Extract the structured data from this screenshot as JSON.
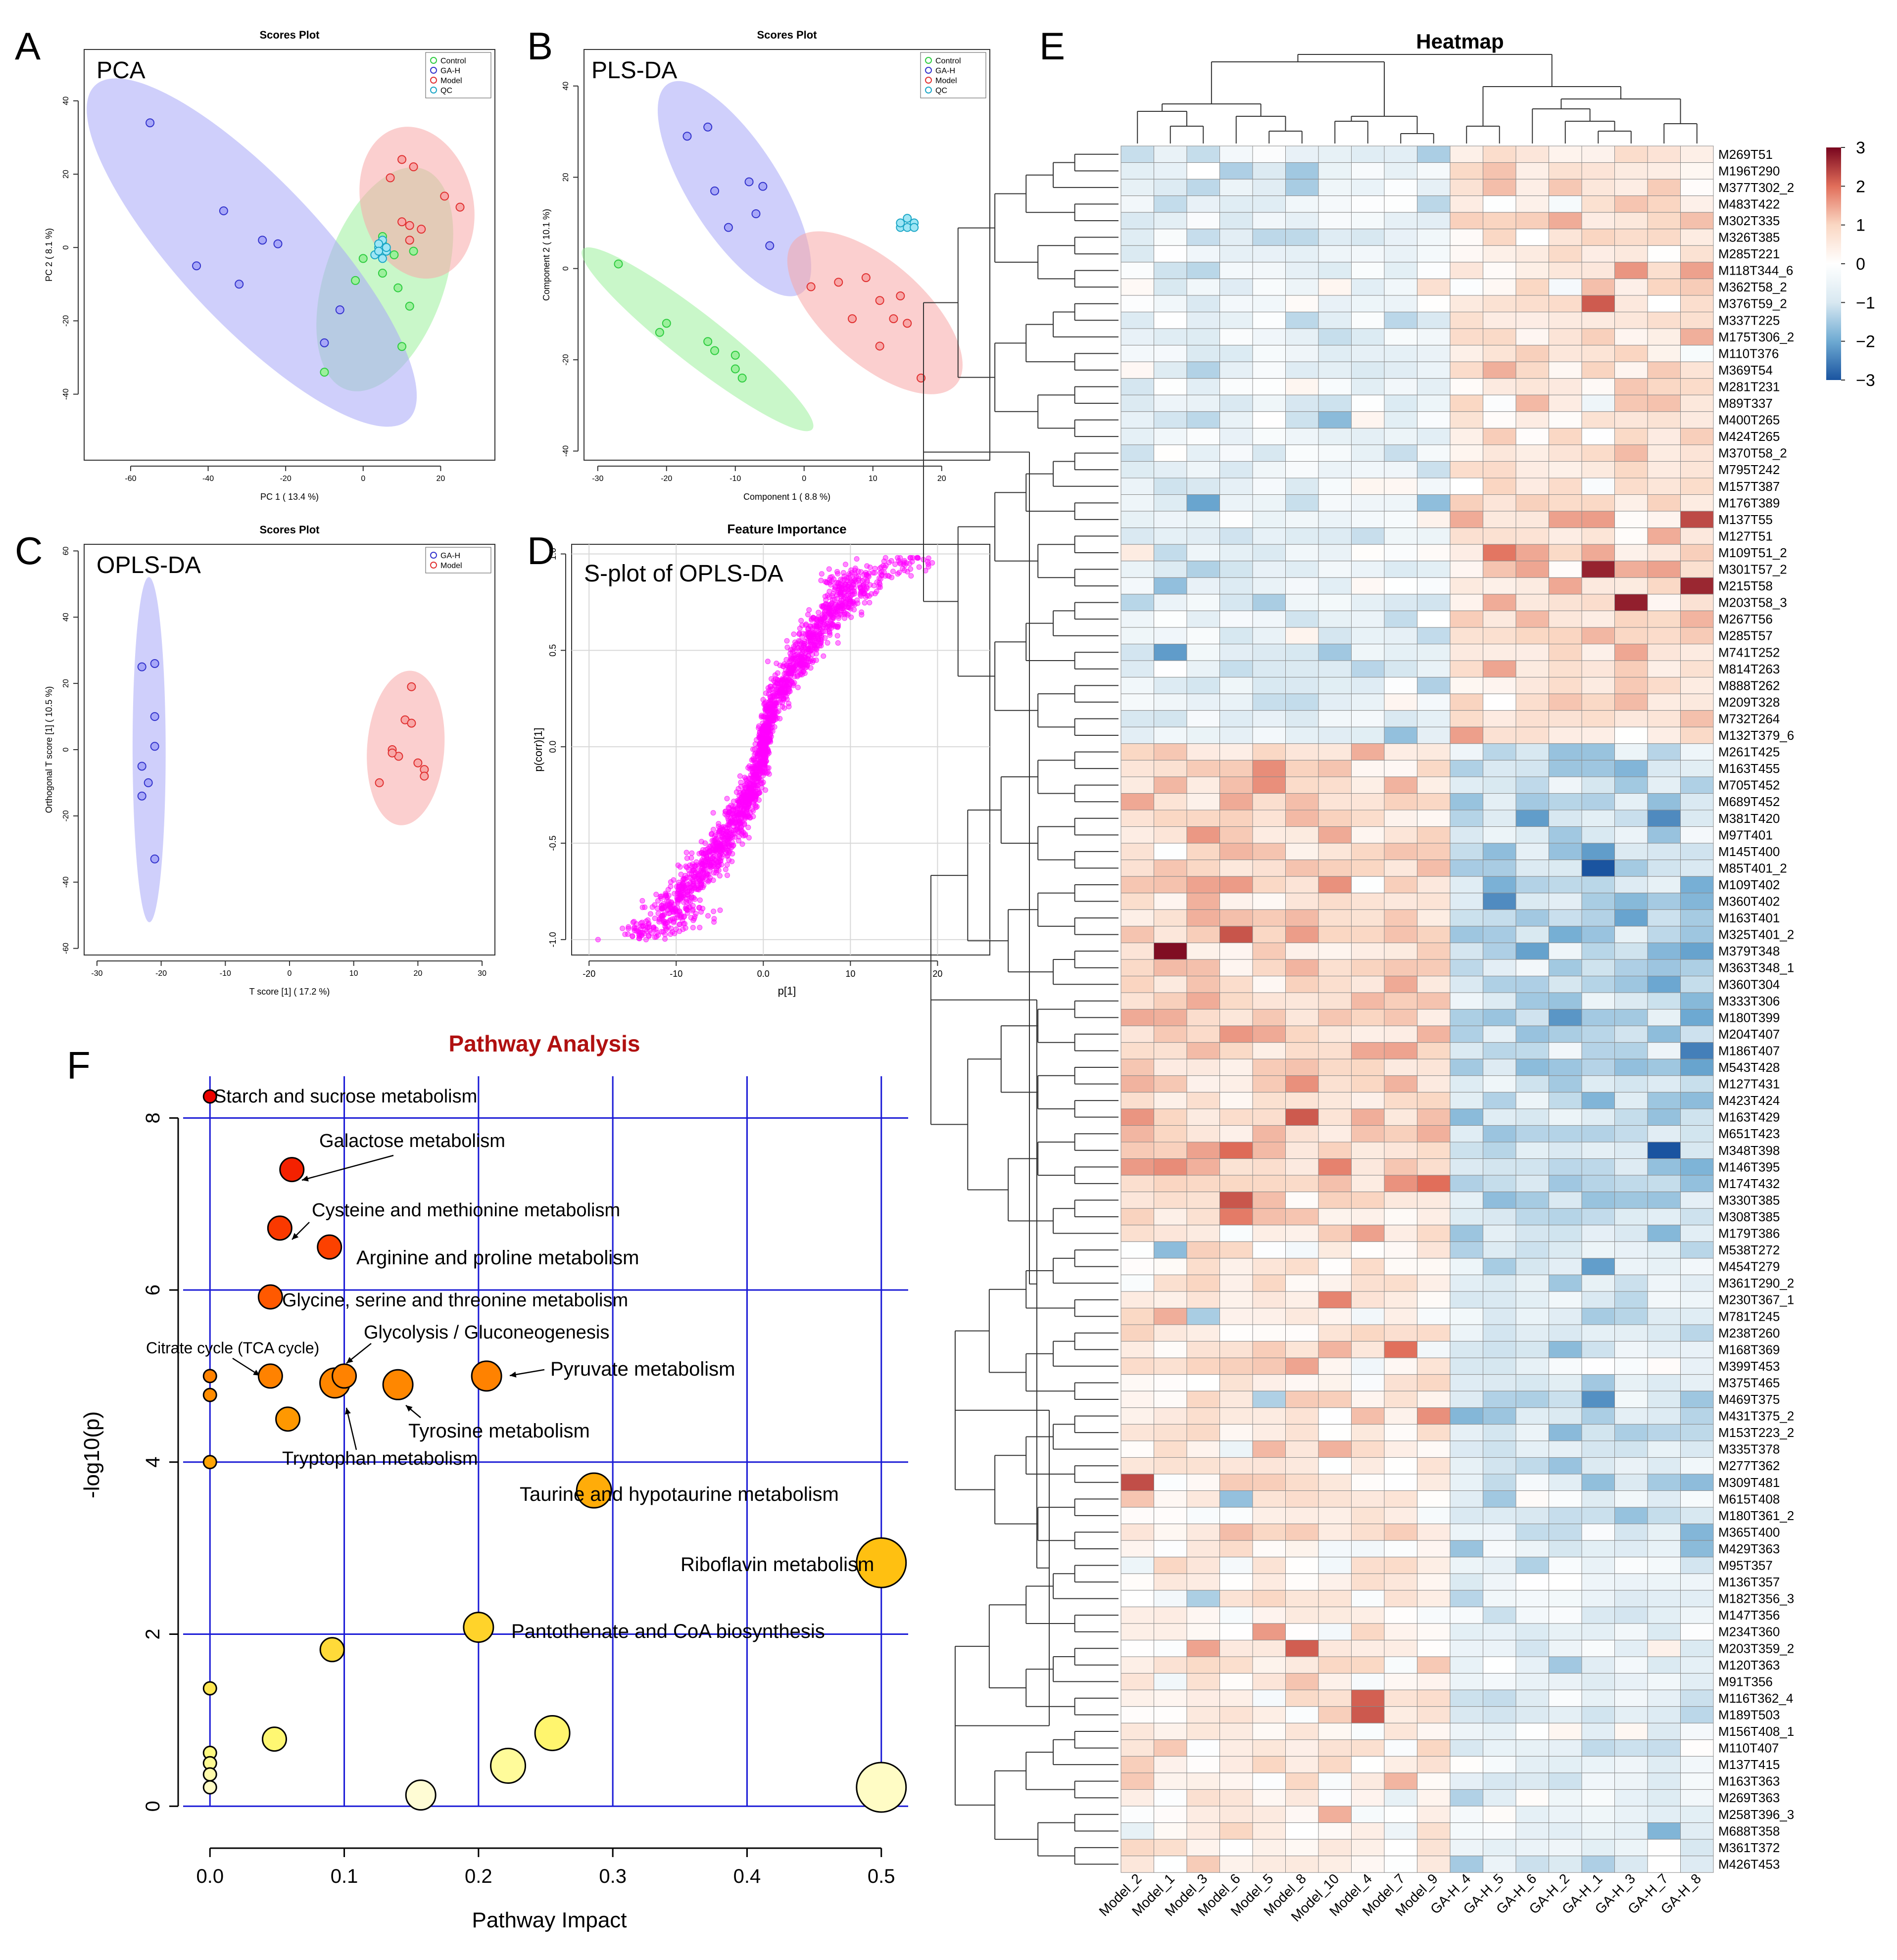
{
  "figure": {
    "panel_letters": [
      "A",
      "B",
      "C",
      "D",
      "E",
      "F"
    ],
    "colors": {
      "control": "#2ecc40",
      "gah": "#3333cc",
      "model": "#e03030",
      "qc": "#1aa6c6",
      "control_fill": "#9cf09c",
      "gah_fill": "#a8a8f8",
      "model_fill": "#f8a8a8",
      "splot": "#ff00ff",
      "grid_blue": "#1a1ad6",
      "pathway_title": "#b01010"
    }
  },
  "chart_data": [
    {
      "panel": "A",
      "type": "scatter",
      "title": "Scores Plot",
      "label": "PCA",
      "xlabel": "PC 1 ( 13.4 %)",
      "ylabel": "PC 2 ( 8.1 %)",
      "xlim": [
        -72,
        34
      ],
      "ylim": [
        -58,
        54
      ],
      "xticks": [
        -60,
        -40,
        -20,
        0,
        20
      ],
      "yticks": [
        -40,
        -20,
        0,
        20,
        40
      ],
      "legend": [
        "Control",
        "GA-H",
        "Model",
        "QC"
      ],
      "series": [
        {
          "name": "Control",
          "points": [
            [
              5,
              -7
            ],
            [
              8,
              -2
            ],
            [
              5,
              3
            ],
            [
              9,
              -11
            ],
            [
              12,
              -16
            ],
            [
              13,
              -1
            ],
            [
              10,
              -27
            ],
            [
              0,
              -3
            ],
            [
              -10,
              -34
            ],
            [
              -2,
              -9
            ],
            [
              5,
              1
            ],
            [
              12,
              2
            ]
          ]
        },
        {
          "name": "GA-H",
          "points": [
            [
              -55,
              34
            ],
            [
              -36,
              10
            ],
            [
              -43,
              -5
            ],
            [
              -26,
              2
            ],
            [
              -22,
              1
            ],
            [
              -32,
              -10
            ],
            [
              -6,
              -17
            ],
            [
              -10,
              -26
            ]
          ]
        },
        {
          "name": "Model",
          "points": [
            [
              10,
              24
            ],
            [
              13,
              22
            ],
            [
              7,
              19
            ],
            [
              21,
              14
            ],
            [
              25,
              11
            ],
            [
              10,
              7
            ],
            [
              12,
              2
            ],
            [
              15,
              5
            ],
            [
              12,
              6
            ]
          ]
        },
        {
          "name": "QC",
          "points": [
            [
              4,
              0
            ],
            [
              5,
              2
            ],
            [
              6,
              -1
            ],
            [
              3,
              -2
            ],
            [
              4,
              1
            ],
            [
              5,
              -3
            ],
            [
              6,
              0
            ],
            [
              4,
              -1
            ]
          ]
        }
      ]
    },
    {
      "panel": "B",
      "type": "scatter",
      "title": "Scores Plot",
      "label": "PLS-DA",
      "xlabel": "Component 1 ( 8.8 %)",
      "ylabel": "Component 2 ( 10.1 %)",
      "xlim": [
        -32,
        27
      ],
      "ylim": [
        -42,
        48
      ],
      "xticks": [
        -30,
        -20,
        -10,
        0,
        10,
        20
      ],
      "yticks": [
        -40,
        -20,
        0,
        20,
        40
      ],
      "legend": [
        "Control",
        "GA-H",
        "Model",
        "QC"
      ],
      "series": [
        {
          "name": "Control",
          "points": [
            [
              -27,
              1
            ],
            [
              -21,
              -14
            ],
            [
              -20,
              -12
            ],
            [
              -14,
              -16
            ],
            [
              -13,
              -18
            ],
            [
              -10,
              -22
            ],
            [
              -9,
              -24
            ],
            [
              -10,
              -19
            ]
          ]
        },
        {
          "name": "GA-H",
          "points": [
            [
              -17,
              29
            ],
            [
              -14,
              31
            ],
            [
              -13,
              17
            ],
            [
              -11,
              9
            ],
            [
              -8,
              19
            ],
            [
              -7,
              12
            ],
            [
              -6,
              18
            ],
            [
              -5,
              5
            ]
          ]
        },
        {
          "name": "Model",
          "points": [
            [
              1,
              -4
            ],
            [
              5,
              -3
            ],
            [
              9,
              -2
            ],
            [
              11,
              -7
            ],
            [
              14,
              -6
            ],
            [
              13,
              -11
            ],
            [
              7,
              -11
            ],
            [
              15,
              -12
            ],
            [
              17,
              -24
            ],
            [
              11,
              -17
            ]
          ]
        },
        {
          "name": "QC",
          "points": [
            [
              14,
              9
            ],
            [
              15,
              11
            ],
            [
              16,
              10
            ],
            [
              15,
              9
            ],
            [
              14,
              10
            ],
            [
              16,
              9
            ]
          ]
        }
      ]
    },
    {
      "panel": "C",
      "type": "scatter",
      "title": "Scores Plot",
      "label": "OPLS-DA",
      "xlabel": "T score [1] ( 17.2 %)",
      "ylabel": "Orthogonal T score [1] ( 10.5 %)",
      "xlim": [
        -32,
        32
      ],
      "ylim": [
        -62,
        62
      ],
      "xticks": [
        -30,
        -20,
        -10,
        0,
        10,
        20,
        30
      ],
      "yticks": [
        -60,
        -40,
        -20,
        0,
        20,
        40,
        60
      ],
      "legend": [
        "GA-H",
        "Model"
      ],
      "series": [
        {
          "name": "GA-H",
          "points": [
            [
              -23,
              25
            ],
            [
              -21,
              26
            ],
            [
              -21,
              10
            ],
            [
              -21,
              1
            ],
            [
              -23,
              -5
            ],
            [
              -22,
              -10
            ],
            [
              -23,
              -14
            ],
            [
              -21,
              -33
            ]
          ]
        },
        {
          "name": "Model",
          "points": [
            [
              19,
              19
            ],
            [
              18,
              9
            ],
            [
              19,
              8
            ],
            [
              16,
              0
            ],
            [
              14,
              -10
            ],
            [
              17,
              -2
            ],
            [
              20,
              -4
            ],
            [
              21,
              -6
            ],
            [
              21,
              -8
            ],
            [
              16,
              -1
            ]
          ]
        }
      ]
    },
    {
      "panel": "D",
      "type": "scatter",
      "title": "Feature Importance",
      "label": "S-plot of OPLS-DA",
      "xlabel": "p[1]",
      "ylabel": "p(corr)[1]",
      "xlim": [
        -22,
        26
      ],
      "ylim": [
        -1.08,
        1.05
      ],
      "xticks": [
        -20,
        -10,
        0,
        10,
        20
      ],
      "yticks": [
        -1.0,
        -0.5,
        0.0,
        0.5,
        1.0
      ],
      "point_count_estimate": 2000
    },
    {
      "panel": "E",
      "type": "heatmap",
      "title": "Heatmap",
      "columns": [
        "Model_2",
        "Model_1",
        "Model_3",
        "Model_6",
        "Model_5",
        "Model_8",
        "Model_10",
        "Model_4",
        "Model_7",
        "Model_9",
        "GA-H_4",
        "GA-H_5",
        "GA-H_6",
        "GA-H_2",
        "GA-H_1",
        "GA-H_3",
        "GA-H_7",
        "GA-H_8"
      ],
      "rows": [
        "M269T51",
        "M196T290",
        "M377T302_2",
        "M483T422",
        "M302T335",
        "M326T385",
        "M285T221",
        "M118T344_6",
        "M362T58_2",
        "M376T59_2",
        "M337T225",
        "M175T306_2",
        "M110T376",
        "M369T54",
        "M281T231",
        "M89T337",
        "M400T265",
        "M424T265",
        "M370T58_2",
        "M795T242",
        "M157T387",
        "M176T389",
        "M137T55",
        "M127T51",
        "M109T51_2",
        "M301T57_2",
        "M215T58",
        "M203T58_3",
        "M267T56",
        "M285T57",
        "M741T252",
        "M814T263",
        "M888T262",
        "M209T328",
        "M732T264",
        "M132T379_6",
        "M261T425",
        "M163T455",
        "M705T452",
        "M689T452",
        "M381T420",
        "M97T401",
        "M145T400",
        "M85T401_2",
        "M109T402",
        "M360T402",
        "M163T401",
        "M325T401_2",
        "M379T348",
        "M363T348_1",
        "M360T304",
        "M333T306",
        "M180T399",
        "M204T407",
        "M186T407",
        "M543T428",
        "M127T431",
        "M423T424",
        "M163T429",
        "M651T423",
        "M348T398",
        "M146T395",
        "M174T432",
        "M330T385",
        "M308T385",
        "M179T386",
        "M538T272",
        "M454T279",
        "M361T290_2",
        "M230T367_1",
        "M781T245",
        "M238T260",
        "M168T369",
        "M399T453",
        "M375T465",
        "M469T375",
        "M431T375_2",
        "M153T223_2",
        "M335T378",
        "M277T362",
        "M309T481",
        "M615T408",
        "M180T361_2",
        "M365T400",
        "M429T363",
        "M95T357",
        "M136T357",
        "M182T356_3",
        "M147T356",
        "M234T360",
        "M203T359_2",
        "M120T363",
        "M91T356",
        "M116T362_4",
        "M189T503",
        "M156T408_1",
        "M110T407",
        "M137T415",
        "M163T363",
        "M269T363",
        "M258T396_3",
        "M688T358",
        "M361T372",
        "M426T453"
      ],
      "color_scale": {
        "min": -3,
        "max": 3,
        "ticks": [
          "3",
          "2",
          "1",
          "0",
          "−1",
          "−2",
          "−3"
        ]
      },
      "groups": [
        {
          "rows": [
            0,
            35
          ],
          "model_mean": -0.6,
          "gah_mean": 0.7
        },
        {
          "rows": [
            36,
            65
          ],
          "model_mean": 0.9,
          "gah_mean": -1.2
        },
        {
          "rows": [
            66,
            84
          ],
          "model_mean": 0.5,
          "gah_mean": -0.9
        },
        {
          "rows": [
            85,
            103
          ],
          "model_mean": 0.4,
          "gah_mean": -0.6
        }
      ]
    },
    {
      "panel": "F",
      "type": "scatter",
      "title": "Pathway Analysis",
      "xlabel": "Pathway Impact",
      "ylabel": "-log10(p)",
      "xlim": [
        -0.02,
        0.52
      ],
      "ylim": [
        -0.2,
        8.6
      ],
      "xticks": [
        "0.0",
        "0.1",
        "0.2",
        "0.3",
        "0.4",
        "0.5"
      ],
      "yticks": [
        "0",
        "2",
        "4",
        "6",
        "8"
      ],
      "points": [
        {
          "x": 0.0,
          "y": 8.25,
          "size": 1,
          "label": "Starch and sucrose metabolism"
        },
        {
          "x": 0.061,
          "y": 7.4,
          "size": 3,
          "label": "Galactose metabolism"
        },
        {
          "x": 0.052,
          "y": 6.72,
          "size": 3,
          "label": "Cysteine and methionine metabolism"
        },
        {
          "x": 0.089,
          "y": 6.5,
          "size": 3,
          "label": "Arginine and proline metabolism"
        },
        {
          "x": 0.045,
          "y": 5.92,
          "size": 3,
          "label": "Glycine, serine and threonine metabolism"
        },
        {
          "x": 0.1,
          "y": 5.0,
          "size": 3,
          "label": "Glycolysis / Gluconeogenesis"
        },
        {
          "x": 0.045,
          "y": 5.0,
          "size": 3,
          "label": "Citrate cycle (TCA cycle)"
        },
        {
          "x": 0.206,
          "y": 5.0,
          "size": 4,
          "label": "Pyruvate metabolism"
        },
        {
          "x": 0.14,
          "y": 4.9,
          "size": 4,
          "label": "Tyrosine metabolism"
        },
        {
          "x": 0.093,
          "y": 4.92,
          "size": 4,
          "label": "Tryptophan metabolism"
        },
        {
          "x": 0.0,
          "y": 5.0,
          "size": 1,
          "label": ""
        },
        {
          "x": 0.0,
          "y": 4.78,
          "size": 1,
          "label": ""
        },
        {
          "x": 0.058,
          "y": 4.5,
          "size": 3,
          "label": ""
        },
        {
          "x": 0.0,
          "y": 4.0,
          "size": 1,
          "label": ""
        },
        {
          "x": 0.286,
          "y": 3.67,
          "size": 5,
          "label": "Taurine and hypotaurine metabolism"
        },
        {
          "x": 0.5,
          "y": 2.83,
          "size": 6,
          "label": "Riboflavin metabolism"
        },
        {
          "x": 0.2,
          "y": 2.08,
          "size": 4,
          "label": "Pantothenate and CoA biosynthesis"
        },
        {
          "x": 0.091,
          "y": 1.82,
          "size": 3,
          "label": ""
        },
        {
          "x": 0.0,
          "y": 1.37,
          "size": 1,
          "label": ""
        },
        {
          "x": 0.255,
          "y": 0.85,
          "size": 5,
          "label": ""
        },
        {
          "x": 0.048,
          "y": 0.78,
          "size": 3,
          "label": ""
        },
        {
          "x": 0.0,
          "y": 0.62,
          "size": 1,
          "label": ""
        },
        {
          "x": 0.0,
          "y": 0.5,
          "size": 1,
          "label": ""
        },
        {
          "x": 0.222,
          "y": 0.47,
          "size": 5,
          "label": ""
        },
        {
          "x": 0.0,
          "y": 0.37,
          "size": 1,
          "label": ""
        },
        {
          "x": 0.0,
          "y": 0.22,
          "size": 1,
          "label": ""
        },
        {
          "x": 0.5,
          "y": 0.22,
          "size": 6,
          "label": ""
        },
        {
          "x": 0.157,
          "y": 0.13,
          "size": 4,
          "label": ""
        }
      ]
    }
  ]
}
